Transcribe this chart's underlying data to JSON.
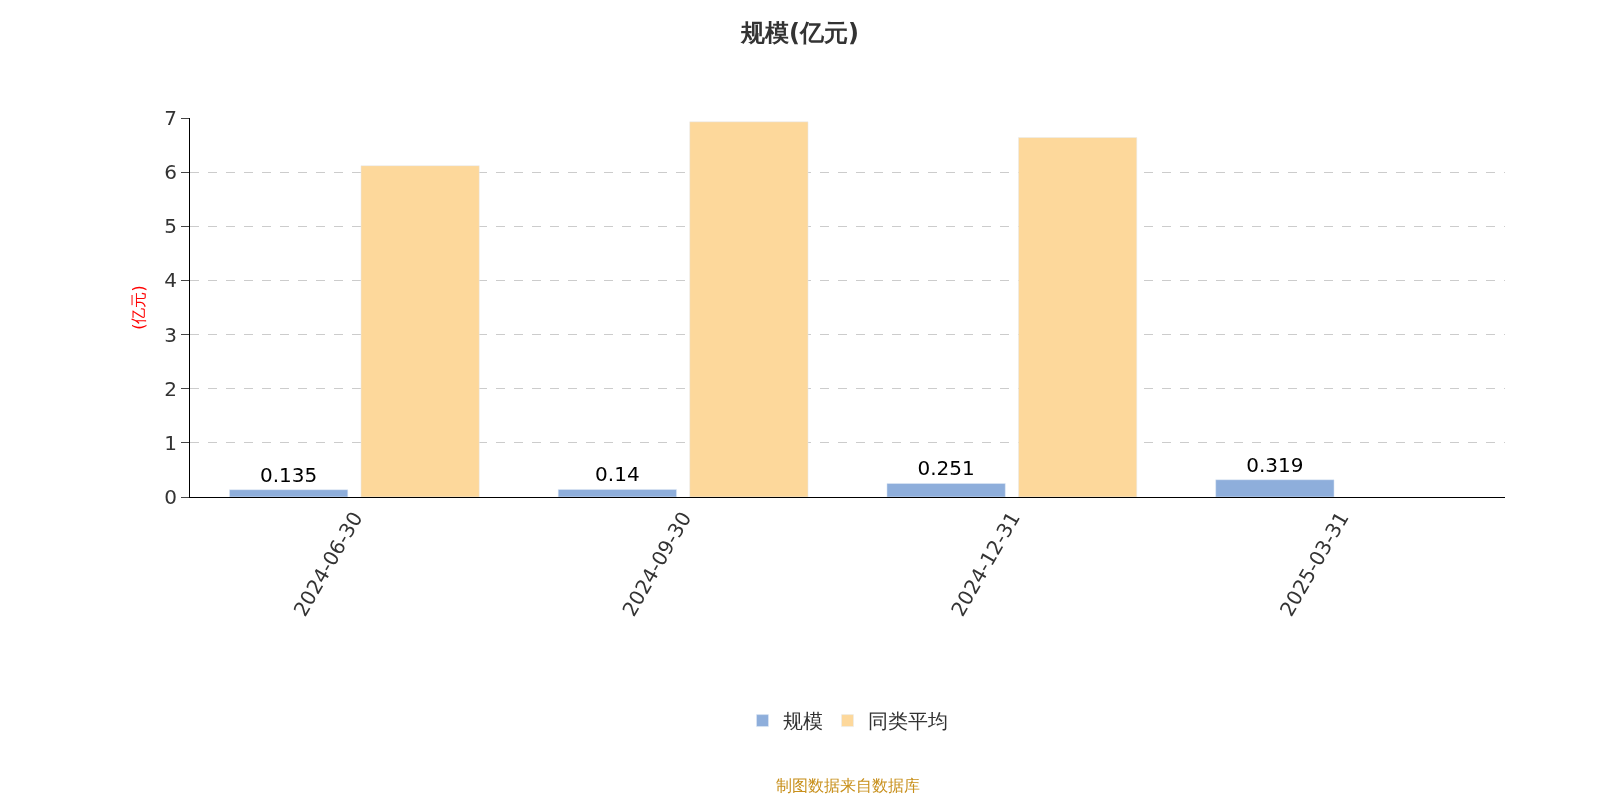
{
  "chart_data": {
    "type": "bar",
    "title": "规模(亿元)",
    "ylabel": "(亿元)",
    "categories": [
      "2024-06-30",
      "2024-09-30",
      "2024-12-31",
      "2025-03-31"
    ],
    "series": [
      {
        "name": "规模",
        "color": "#8eaedb",
        "values": [
          0.135,
          0.14,
          0.251,
          0.319
        ],
        "value_labels": [
          "0.135",
          "0.14",
          "0.251",
          "0.319"
        ]
      },
      {
        "name": "同类平均",
        "color": "#fdd89b",
        "values": [
          6.12,
          6.93,
          6.64,
          null
        ]
      }
    ],
    "ylim": [
      0,
      7
    ],
    "yticks": [
      0,
      1,
      2,
      3,
      4,
      5,
      6,
      7
    ],
    "grid": "y",
    "legend": "bottom",
    "annotations": [
      "制图数据来自数据库"
    ]
  }
}
